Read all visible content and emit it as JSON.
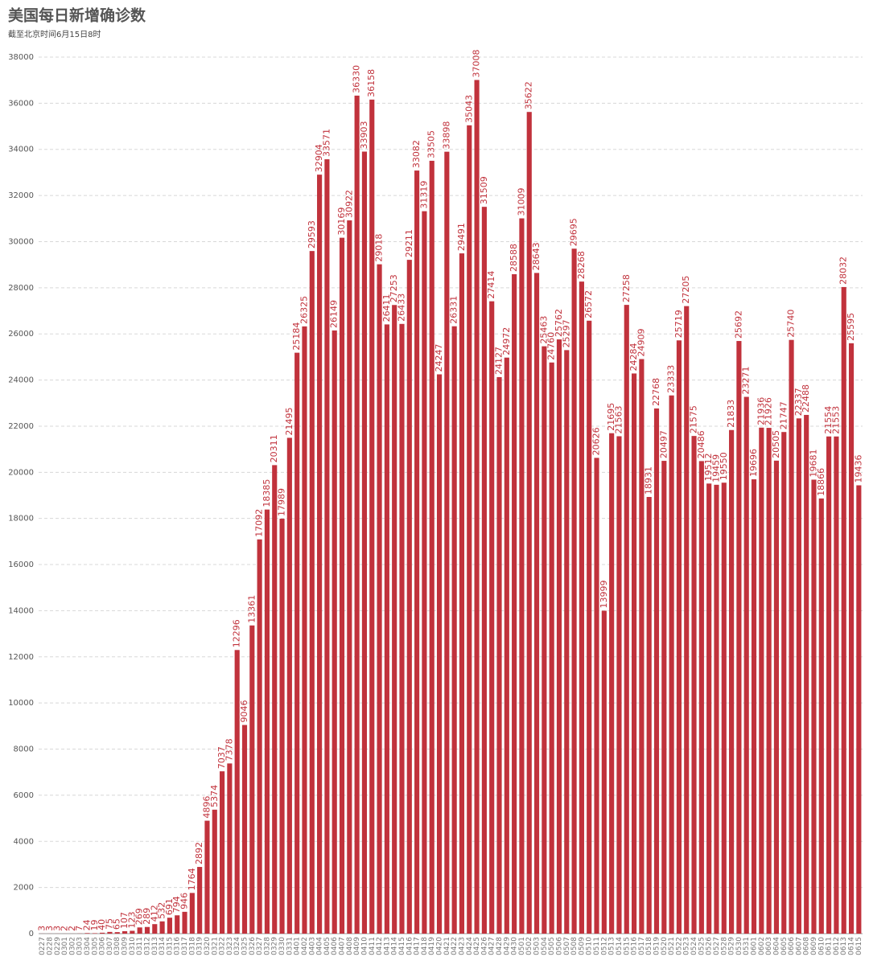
{
  "chart_data": {
    "type": "bar",
    "title": "美国每日新增确诊数",
    "subtitle": "截至北京时间6月15日8时",
    "color": "#c1323c",
    "label_color": "#c1323c",
    "grid": true,
    "ylim": [
      0,
      38000
    ],
    "yticks": [
      0,
      2000,
      4000,
      6000,
      8000,
      10000,
      12000,
      14000,
      16000,
      18000,
      20000,
      22000,
      24000,
      26000,
      28000,
      30000,
      32000,
      34000,
      36000,
      38000
    ],
    "categories": [
      "0227",
      "0228",
      "0229",
      "0301",
      "0302",
      "0303",
      "0304",
      "0305",
      "0306",
      "0307",
      "0308",
      "0309",
      "0310",
      "0311",
      "0312",
      "0313",
      "0314",
      "0315",
      "0316",
      "0317",
      "0318",
      "0319",
      "0320",
      "0321",
      "0322",
      "0323",
      "0324",
      "0325",
      "0326",
      "0327",
      "0328",
      "0329",
      "0330",
      "0331",
      "0401",
      "0402",
      "0403",
      "0404",
      "0405",
      "0406",
      "0407",
      "0408",
      "0409",
      "0410",
      "0411",
      "0412",
      "0413",
      "0414",
      "0415",
      "0416",
      "0417",
      "0418",
      "0419",
      "0420",
      "0421",
      "0422",
      "0423",
      "0424",
      "0425",
      "0426",
      "0427",
      "0428",
      "0429",
      "0430",
      "0501",
      "0502",
      "0503",
      "0504",
      "0505",
      "0506",
      "0507",
      "0508",
      "0509",
      "0510",
      "0511",
      "0512",
      "0513",
      "0514",
      "0515",
      "0516",
      "0517",
      "0518",
      "0519",
      "0520",
      "0521",
      "0522",
      "0523",
      "0524",
      "0525",
      "0526",
      "0527",
      "0528",
      "0529",
      "0530",
      "0531",
      "0601",
      "0602",
      "0603",
      "0604",
      "0605",
      "0606",
      "0607",
      "0608",
      "0609",
      "0610",
      "0611",
      "0612",
      "0613",
      "0614",
      "0615"
    ],
    "values": [
      3,
      3,
      3,
      2,
      2,
      7,
      24,
      19,
      40,
      75,
      65,
      107,
      123,
      269,
      289,
      412,
      532,
      691,
      794,
      946,
      1764,
      2892,
      4896,
      5374,
      7037,
      7378,
      12296,
      9046,
      13361,
      17092,
      18385,
      20311,
      17989,
      21495,
      25184,
      26325,
      29593,
      32904,
      33571,
      26149,
      30169,
      30922,
      36330,
      33903,
      36158,
      29018,
      26411,
      27253,
      26433,
      29211,
      33082,
      31319,
      33505,
      24247,
      33898,
      26331,
      29491,
      35043,
      37008,
      31509,
      27414,
      24127,
      24972,
      28588,
      31009,
      35622,
      28643,
      25463,
      24760,
      25762,
      25297,
      29695,
      28268,
      26572,
      20626,
      13999,
      21695,
      21563,
      27258,
      24284,
      24909,
      18931,
      22768,
      20497,
      23333,
      25719,
      27205,
      21575,
      20486,
      19512,
      19459,
      19550,
      21833,
      25692,
      23271,
      19696,
      21936,
      21926,
      20505,
      21747,
      25740,
      22337,
      22488,
      19681,
      18866,
      21554,
      21553,
      28032,
      25595,
      19436
    ]
  }
}
